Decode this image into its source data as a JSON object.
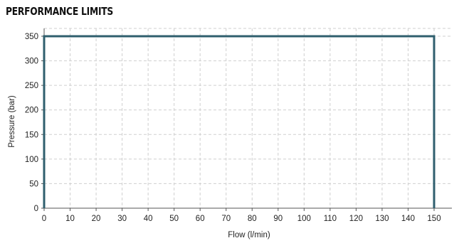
{
  "chart_data": {
    "type": "line",
    "title": "PERFORMANCE LIMITS",
    "xlabel": "Flow (l/min)",
    "ylabel": "Pressure (bar)",
    "xlim": [
      0,
      155
    ],
    "ylim": [
      0,
      350
    ],
    "x_ticks": [
      0,
      10,
      20,
      30,
      40,
      50,
      60,
      70,
      80,
      90,
      100,
      110,
      120,
      130,
      140,
      150
    ],
    "y_ticks": [
      0,
      50,
      100,
      150,
      200,
      250,
      300,
      350
    ],
    "grid": true,
    "series": [
      {
        "x": [
          0,
          0,
          150,
          150
        ],
        "y": [
          0,
          350,
          350,
          0
        ],
        "color": "#2f5f6e"
      }
    ]
  }
}
